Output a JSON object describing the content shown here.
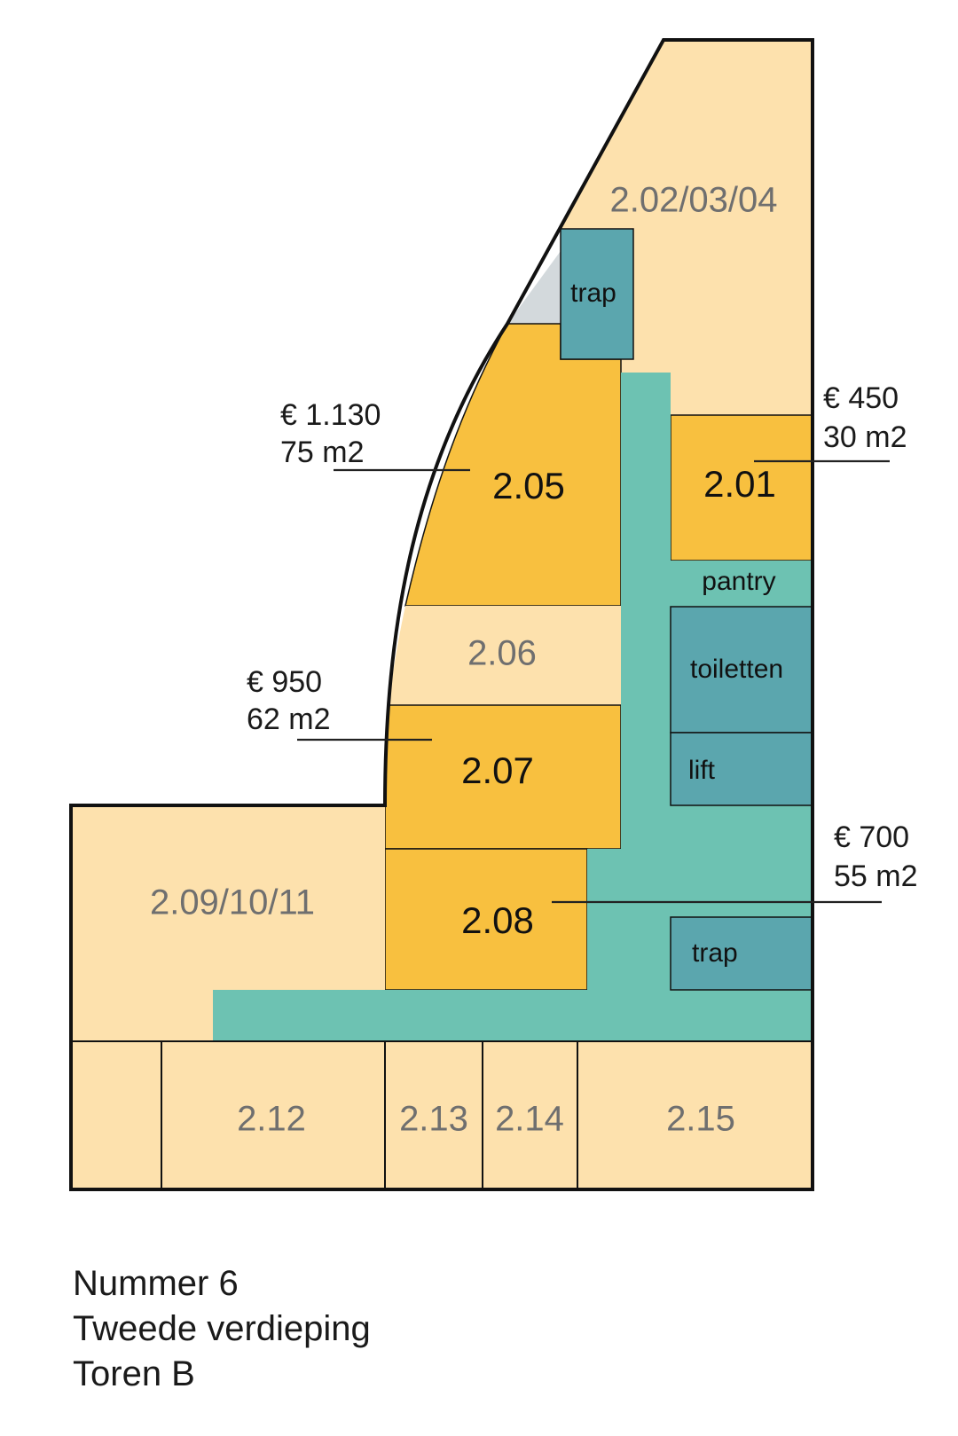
{
  "colors": {
    "available": "#F8C03F",
    "occupied": "#FDE1AD",
    "corridor": "#6DC2B2",
    "facility": "#5BA6AE",
    "void": "#D3D9DC",
    "outline": "#111111",
    "label_dark": "#111111",
    "label_muted": "#6f6f6f"
  },
  "rooms": {
    "r202": "2.02/03/04",
    "r201": "2.01",
    "r205": "2.05",
    "r206": "2.06",
    "r207": "2.07",
    "r208": "2.08",
    "r209": "2.09/10/11",
    "r212": "2.12",
    "r213": "2.13",
    "r214": "2.14",
    "r215": "2.15"
  },
  "facilities": {
    "trap_top": "trap",
    "pantry": "pantry",
    "toiletten": "toiletten",
    "lift": "lift",
    "trap_bottom": "trap"
  },
  "offers": {
    "r205": {
      "price": "€ 1.130",
      "area": "75 m2"
    },
    "r201": {
      "price": "€ 450",
      "area": "30 m2"
    },
    "r207": {
      "price": "€ 950",
      "area": "62 m2"
    },
    "r208": {
      "price": "€ 700",
      "area": "55 m2"
    }
  },
  "caption": {
    "line1": "Nummer 6",
    "line2": "Tweede verdieping",
    "line3": "Toren B"
  }
}
